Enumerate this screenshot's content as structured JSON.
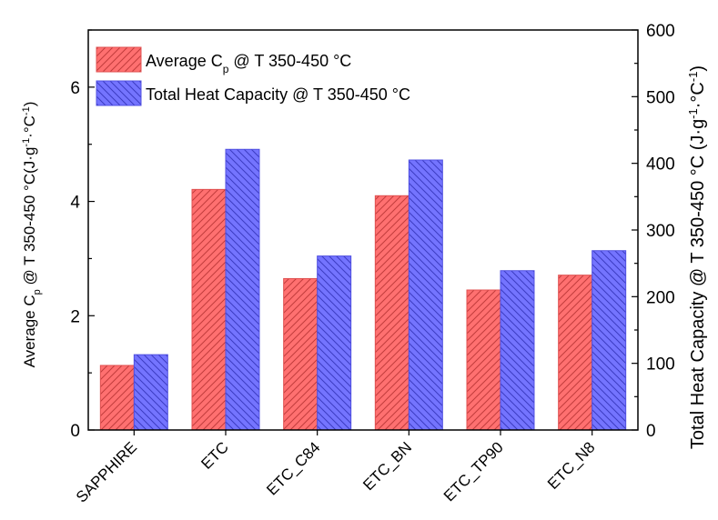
{
  "chart_data": {
    "type": "bar",
    "categories": [
      "SAPPHIRE",
      "ETC",
      "ETC_C84",
      "ETC_BN",
      "ETC_TP90",
      "ETC_N8"
    ],
    "series": [
      {
        "name": "Average Cp @ T 350-450 °C",
        "axis": "left",
        "color": "#ff6b6b",
        "hatch": "//",
        "values": [
          1.13,
          4.21,
          2.65,
          4.1,
          2.45,
          2.71
        ]
      },
      {
        "name": "Total Heat Capacity  @ T 350-450 °C",
        "axis": "right",
        "color": "#6b6bff",
        "hatch": "\\\\",
        "values": [
          113,
          421,
          261,
          405,
          239,
          269
        ]
      }
    ],
    "left_axis": {
      "label": "Average Cp @ T 350-450 °C(J·g-1·°C-1)",
      "ylim": [
        0,
        7
      ],
      "ticks": [
        0,
        2,
        4,
        6
      ]
    },
    "right_axis": {
      "label": "Total Heat Capacity  @ T 350-450 °C (J·g-1·°C-1)",
      "ylim": [
        0,
        600
      ],
      "ticks": [
        0,
        100,
        200,
        300,
        400,
        500,
        600
      ]
    },
    "legend_position": "top-left",
    "grid": false
  }
}
